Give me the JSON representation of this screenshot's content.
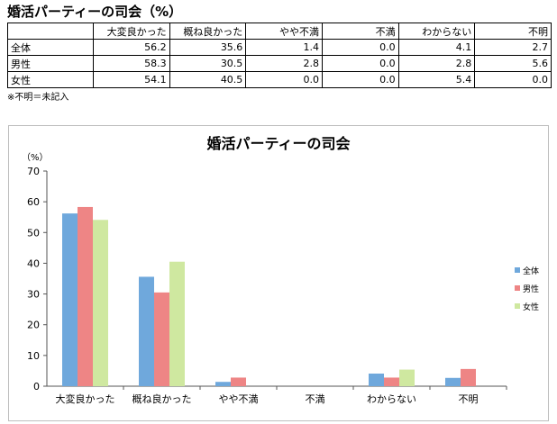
{
  "title": "婚活パーティーの司会（%）",
  "table": {
    "columns": [
      "大変良かった",
      "概ね良かった",
      "やや不満",
      "不満",
      "わからない",
      "不明"
    ],
    "rows": [
      {
        "label": "全体",
        "values": [
          "56.2",
          "35.6",
          "1.4",
          "0.0",
          "4.1",
          "2.7"
        ]
      },
      {
        "label": "男性",
        "values": [
          "58.3",
          "30.5",
          "2.8",
          "0.0",
          "2.8",
          "5.6"
        ]
      },
      {
        "label": "女性",
        "values": [
          "54.1",
          "40.5",
          "0.0",
          "0.0",
          "5.4",
          "0.0"
        ]
      }
    ]
  },
  "footnote": "※不明＝未記入",
  "chart_data": {
    "type": "bar",
    "title": "婚活パーティーの司会",
    "ylabel": "（%）",
    "categories": [
      "大変良かった",
      "概ね良かった",
      "やや不満",
      "不満",
      "わからない",
      "不明"
    ],
    "series": [
      {
        "name": "全体",
        "values": [
          56.2,
          35.6,
          1.4,
          0.0,
          4.1,
          2.7
        ],
        "color": "#6fa8dc"
      },
      {
        "name": "男性",
        "values": [
          58.3,
          30.5,
          2.8,
          0.0,
          2.8,
          5.6
        ],
        "color": "#ee8585"
      },
      {
        "name": "女性",
        "values": [
          54.1,
          40.5,
          0.0,
          0.0,
          5.4,
          0.0
        ],
        "color": "#cfe8a0"
      }
    ],
    "ylim": [
      0,
      70
    ],
    "yticks": [
      0,
      10,
      20,
      30,
      40,
      50,
      60,
      70
    ],
    "grid": false,
    "legend": "right"
  }
}
